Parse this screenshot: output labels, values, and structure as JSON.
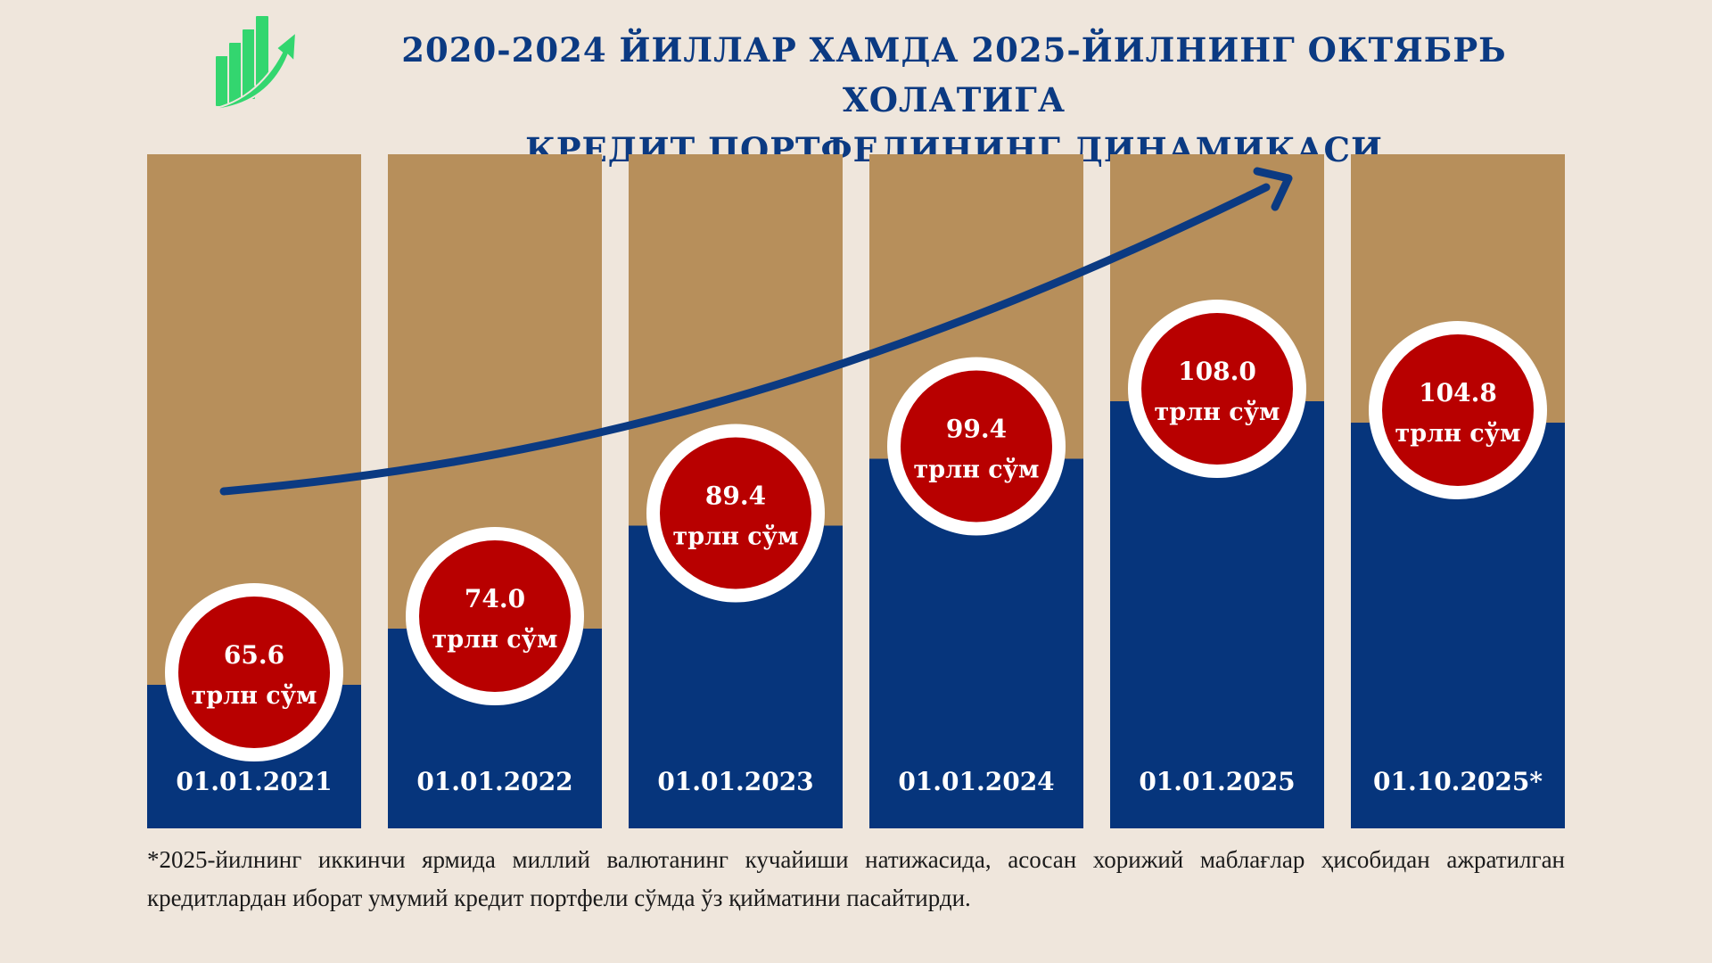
{
  "title": {
    "line1": "2020-2024 ЙИЛЛАР ХАМДА 2025-ЙИЛНИНГ ОКТЯБРЬ ХОЛАТИГА",
    "line2": "КРЕДИТ ПОРТФЕЛИНИНГ ДИНАМИКАСИ"
  },
  "logo_icon": "growth-bars-arrow-icon",
  "chart_data": {
    "type": "bar",
    "title": "2020-2024 ЙИЛЛАР ХАМДА 2025-ЙИЛНИНГ ОКТЯБРЬ ХОЛАТИГА КРЕДИТ ПОРТФЕЛИНИНГ ДИНАМИКАСИ",
    "categories": [
      "01.01.2021",
      "01.01.2022",
      "01.01.2023",
      "01.01.2024",
      "01.01.2025",
      "01.10.2025*"
    ],
    "values": [
      65.6,
      74.0,
      89.4,
      99.4,
      108.0,
      104.8
    ],
    "value_labels": [
      "65.6",
      "74.0",
      "89.4",
      "99.4",
      "108.0",
      "104.8"
    ],
    "unit": "трлн сўм",
    "trend_arrow": "up",
    "grid": false,
    "colors": {
      "bar": "#06357c",
      "background_bar": "#b78f5b",
      "badge": "#b80000",
      "badge_ring": "#ffffff",
      "arrow": "#0b3a82",
      "title": "#0b3a82",
      "logo": "#33d66f"
    }
  },
  "footnote": "*2025-йилнинг иккинчи ярмида миллий валютанинг кучайиши натижасида, асосан хорижий маблағлар ҳисобидан ажратилган кредитлардан иборат умумий кредит портфели сўмда ўз қийматини пасайтирди."
}
